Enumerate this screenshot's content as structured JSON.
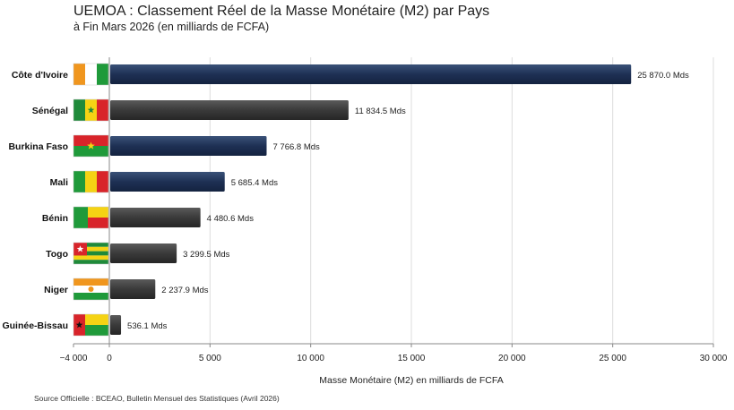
{
  "chart_data": {
    "type": "bar",
    "orientation": "horizontal",
    "title": "UEMOA : Classement Réel de la Masse Monétaire (M2) par Pays",
    "subtitle": "à Fin Mars 2026 (en milliards de FCFA)",
    "xlabel": "Masse Monétaire (M2) en milliards de FCFA",
    "ylabel": "",
    "xlim": [
      -4000,
      30000
    ],
    "xticks": [
      -4000,
      0,
      5000,
      10000,
      15000,
      20000,
      25000,
      30000
    ],
    "xtick_labels": [
      "−4 000",
      "0",
      "5 000",
      "10 000",
      "15 000",
      "20 000",
      "25 000",
      "30 000"
    ],
    "grid": true,
    "categories": [
      "Côte d'Ivoire",
      "Sénégal",
      "Burkina Faso",
      "Mali",
      "Bénin",
      "Togo",
      "Niger",
      "Guinée-Bissau"
    ],
    "values": [
      25870.0,
      11834.5,
      7766.8,
      5685.4,
      4480.6,
      3299.5,
      2237.9,
      536.1
    ],
    "data_labels": [
      "25 870.0 Mds",
      "11 834.5 Mds",
      "7 766.8 Mds",
      "5 685.4 Mds",
      "4 480.6 Mds",
      "3 299.5 Mds",
      "2 237.9 Mds",
      "536.1 Mds"
    ],
    "bar_colors": [
      "#1e3054",
      "#3a3a3a",
      "#1e3054",
      "#2a3a5c",
      "#3a3a3a",
      "#3a3a3a",
      "#3a3a3a",
      "#3a3a3a"
    ],
    "source": "Source Officielle : BCEAO, Bulletin Mensuel des Statistiques (Avril 2026)"
  }
}
